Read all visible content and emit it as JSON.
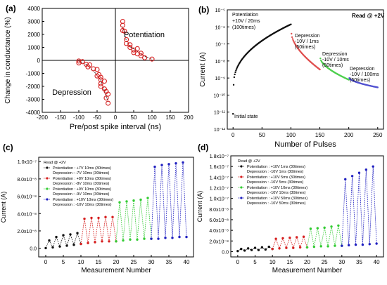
{
  "chart_data": [
    {
      "panel_label": "(a)",
      "type": "scatter",
      "xlabel": "Pre/post spike interval (ns)",
      "ylabel": "Change in conductance (%)",
      "xlim": [
        -200,
        200
      ],
      "ylim": [
        -4000,
        4000
      ],
      "xticks": [
        -200,
        -150,
        -100,
        -50,
        0,
        50,
        100,
        150,
        200
      ],
      "yticks": [
        -4000,
        -3000,
        -2000,
        -1000,
        0,
        1000,
        2000,
        3000,
        4000
      ],
      "annotations": [
        "Potentiation",
        "Depression"
      ],
      "series": [
        {
          "name": "",
          "color": "#d62020",
          "x": [
            -100,
            -100,
            -90,
            -80,
            -75,
            -70,
            -60,
            -50,
            -50,
            -45,
            -40,
            -40,
            -40,
            -40,
            -30,
            -30,
            -25,
            -25,
            -20,
            -20,
            20,
            20,
            20,
            25,
            30,
            30,
            40,
            40,
            50,
            50,
            60,
            60,
            70,
            70,
            80,
            100
          ],
          "y": [
            -50,
            -200,
            -100,
            -300,
            -500,
            -350,
            -650,
            -700,
            -1200,
            -1100,
            -1300,
            -1500,
            -1800,
            -2000,
            -1600,
            -2200,
            -2400,
            -2900,
            -2600,
            -3300,
            3000,
            2700,
            2300,
            2250,
            1600,
            1300,
            1200,
            1000,
            800,
            600,
            900,
            500,
            550,
            350,
            200,
            100
          ]
        }
      ],
      "fit": {
        "x": [
          -100,
          -80,
          -60,
          -40,
          -20
        ],
        "y": [
          -50,
          -300,
          -800,
          -1500,
          -3200
        ]
      },
      "fit2": {
        "x": [
          20,
          30,
          40,
          60,
          80,
          100
        ],
        "y": [
          2600,
          1500,
          1050,
          700,
          300,
          100
        ]
      }
    },
    {
      "panel_label": "(b)",
      "type": "scatter",
      "xlabel": "Number of Pulses",
      "ylabel": "Current (A)",
      "log_y": true,
      "xlim": [
        -10,
        260
      ],
      "ylim_exp": [
        -12,
        -5
      ],
      "xticks": [
        0,
        50,
        100,
        150,
        200,
        250
      ],
      "ytick_labels": [
        "10⁻¹²",
        "10⁻¹¹",
        "10⁻¹⁰",
        "10⁻⁹",
        "10⁻⁸",
        "10⁻⁷",
        "10⁻⁶",
        "10⁻⁵"
      ],
      "read_label": "Read @ +2V",
      "annotations": {
        "initial": "Initial state",
        "potentiation": [
          "Potentiation",
          "+10V / 20ms",
          "(100times)"
        ],
        "dep1": [
          "Depression",
          "-10V / 1ms",
          "(50times)"
        ],
        "dep2": [
          "Depression",
          "-10V / 10ms",
          "(50times)"
        ],
        "dep3": [
          "Depression",
          "-10V / 100ms",
          "(50times)"
        ]
      },
      "series": [
        {
          "name": "initial",
          "color": "#222222",
          "x": [
            0
          ],
          "y_exp": [
            -11.1
          ]
        },
        {
          "name": "potentiation",
          "color": "#111111",
          "x_range": [
            1,
            100
          ],
          "y_exp_range": [
            -9.4,
            -5.85
          ]
        },
        {
          "name": "depression 1",
          "color": "#e05050",
          "x_range": [
            101,
            150
          ],
          "y_exp_range": [
            -6.4,
            -8.5
          ]
        },
        {
          "name": "depression 2",
          "color": "#4ccf4c",
          "x_range": [
            151,
            200
          ],
          "y_exp_range": [
            -7.85,
            -9.1
          ]
        },
        {
          "name": "depression 3",
          "color": "#5050d0",
          "x_range": [
            201,
            250
          ],
          "y_exp_range": [
            -9.0,
            -9.55
          ]
        }
      ]
    },
    {
      "panel_label": "(c)",
      "type": "line",
      "xlabel": "Measurement Number",
      "ylabel": "Current (A)",
      "xlim": [
        -2,
        42
      ],
      "ylim": [
        -1e-08,
        1.05e-07
      ],
      "xticks": [
        0,
        5,
        10,
        15,
        20,
        25,
        30,
        35,
        40
      ],
      "ytick_values": [
        0,
        2e-08,
        4e-08,
        6e-08,
        8e-08,
        1e-07
      ],
      "ytick_labels": [
        "0.0",
        "2.0x10⁻⁸",
        "4.0x10⁻⁸",
        "6.0x10⁻⁸",
        "8.0x10⁻⁸",
        "1.0x10⁻⁷"
      ],
      "read_label": "Read @ +2V",
      "legend": [
        {
          "color": "#111111",
          "lines": [
            "Potentiation : +7V 10ms (30times)",
            "Depression : -7V 10ms (30times)"
          ]
        },
        {
          "color": "#d62020",
          "lines": [
            "Potentiation : +8V 10ms (30times)",
            "Depression : -8V 10ms (30times)"
          ]
        },
        {
          "color": "#33cc33",
          "lines": [
            "Potentiation : +9V 10ms (30times)",
            "Depression : -9V 10ms (30times)"
          ]
        },
        {
          "color": "#2020c0",
          "lines": [
            "Potentiation : +10V 10ms (30times)",
            "Depression : -10V 10ms (30times)"
          ]
        }
      ],
      "series": [
        {
          "color": "#111111",
          "x": [
            0,
            1,
            2,
            3,
            4,
            5,
            6,
            7,
            8,
            9,
            10
          ],
          "y": [
            2e-10,
            9e-09,
            1e-09,
            1.3e-08,
            2e-09,
            1.5e-08,
            3e-09,
            1.6e-08,
            4e-09,
            1.75e-08,
            5e-09
          ]
        },
        {
          "color": "#d62020",
          "x": [
            10,
            11,
            12,
            13,
            14,
            15,
            16,
            17,
            18,
            19,
            20
          ],
          "y": [
            5e-09,
            3.4e-08,
            6e-09,
            3.5e-08,
            7e-09,
            3.5e-08,
            8e-09,
            3.6e-08,
            8e-09,
            3.6e-08,
            8e-09
          ]
        },
        {
          "color": "#33cc33",
          "x": [
            20,
            21,
            22,
            23,
            24,
            25,
            26,
            27,
            28,
            29,
            30
          ],
          "y": [
            8e-09,
            5.3e-08,
            9e-09,
            5.4e-08,
            1e-08,
            5.5e-08,
            1e-08,
            5.6e-08,
            1.1e-08,
            5.8e-08,
            1.1e-08
          ]
        },
        {
          "color": "#2020c0",
          "x": [
            30,
            31,
            32,
            33,
            34,
            35,
            36,
            37,
            38,
            39,
            40
          ],
          "y": [
            1.1e-08,
            9.4e-08,
            1.1e-08,
            9.6e-08,
            1.2e-08,
            9.7e-08,
            1.2e-08,
            9.8e-08,
            1.3e-08,
            9.9e-08,
            1.3e-08
          ]
        }
      ]
    },
    {
      "panel_label": "(d)",
      "type": "line",
      "xlabel": "Measurement Number",
      "ylabel": "Current (A)",
      "xlim": [
        -2,
        42
      ],
      "ylim": [
        -1e-08,
        1.8e-07
      ],
      "xticks": [
        0,
        5,
        10,
        15,
        20,
        25,
        30,
        35,
        40
      ],
      "ytick_values": [
        0,
        2e-08,
        4e-08,
        6e-08,
        8e-08,
        1e-07,
        1.2e-07,
        1.4e-07,
        1.6e-07,
        1.8e-07
      ],
      "ytick_labels": [
        "0.0",
        "2.0x10⁻⁸",
        "4.0x10⁻⁸",
        "6.0x10⁻⁸",
        "8.0x10⁻⁸",
        "1.0x10⁻⁷",
        "1.2x10⁻⁷",
        "1.4x10⁻⁷",
        "1.6x10⁻⁷",
        "1.8x10⁻⁷"
      ],
      "read_label": "Read @ +2V",
      "legend": [
        {
          "color": "#111111",
          "lines": [
            "Potentiation : +10V 1ms (30times)",
            "Depression : -10V 1ms (30times)"
          ]
        },
        {
          "color": "#d62020",
          "lines": [
            "Potentiation : +10V 5ms (30times)",
            "Depression : -10V 5ms (30times)"
          ]
        },
        {
          "color": "#33cc33",
          "lines": [
            "Potentiation : +10V 10ms (30times)",
            "Depression : -10V 10ms (30times)"
          ]
        },
        {
          "color": "#2020c0",
          "lines": [
            "Potentiation : +10V 50ms (30times)",
            "Depression : -10V 50ms (30times)"
          ]
        }
      ],
      "series": [
        {
          "color": "#111111",
          "x": [
            0,
            1,
            2,
            3,
            4,
            5,
            6,
            7,
            8,
            9,
            10
          ],
          "y": [
            1e-09,
            5e-09,
            2e-09,
            6e-09,
            3e-09,
            7e-09,
            3e-09,
            8e-09,
            4e-09,
            9e-09,
            5e-09
          ]
        },
        {
          "color": "#d62020",
          "x": [
            10,
            11,
            12,
            13,
            14,
            15,
            16,
            17,
            18,
            19,
            20
          ],
          "y": [
            5e-09,
            2.4e-08,
            6e-09,
            2.5e-08,
            7e-09,
            2.6e-08,
            7e-09,
            2.7e-08,
            8e-09,
            2.8e-08,
            8e-09
          ]
        },
        {
          "color": "#33cc33",
          "x": [
            20,
            21,
            22,
            23,
            24,
            25,
            26,
            27,
            28,
            29,
            30
          ],
          "y": [
            8e-09,
            4.3e-08,
            9e-09,
            4.4e-08,
            1e-08,
            4.5e-08,
            1e-08,
            4.7e-08,
            1.1e-08,
            4.9e-08,
            1.1e-08
          ]
        },
        {
          "color": "#2020c0",
          "x": [
            30,
            31,
            32,
            33,
            34,
            35,
            36,
            37,
            38,
            39,
            40
          ],
          "y": [
            1.1e-08,
            1.36e-07,
            1.2e-08,
            1.42e-07,
            1.3e-08,
            1.48e-07,
            1.3e-08,
            1.54e-07,
            1.4e-08,
            1.6e-07,
            1.5e-08
          ]
        }
      ]
    }
  ]
}
